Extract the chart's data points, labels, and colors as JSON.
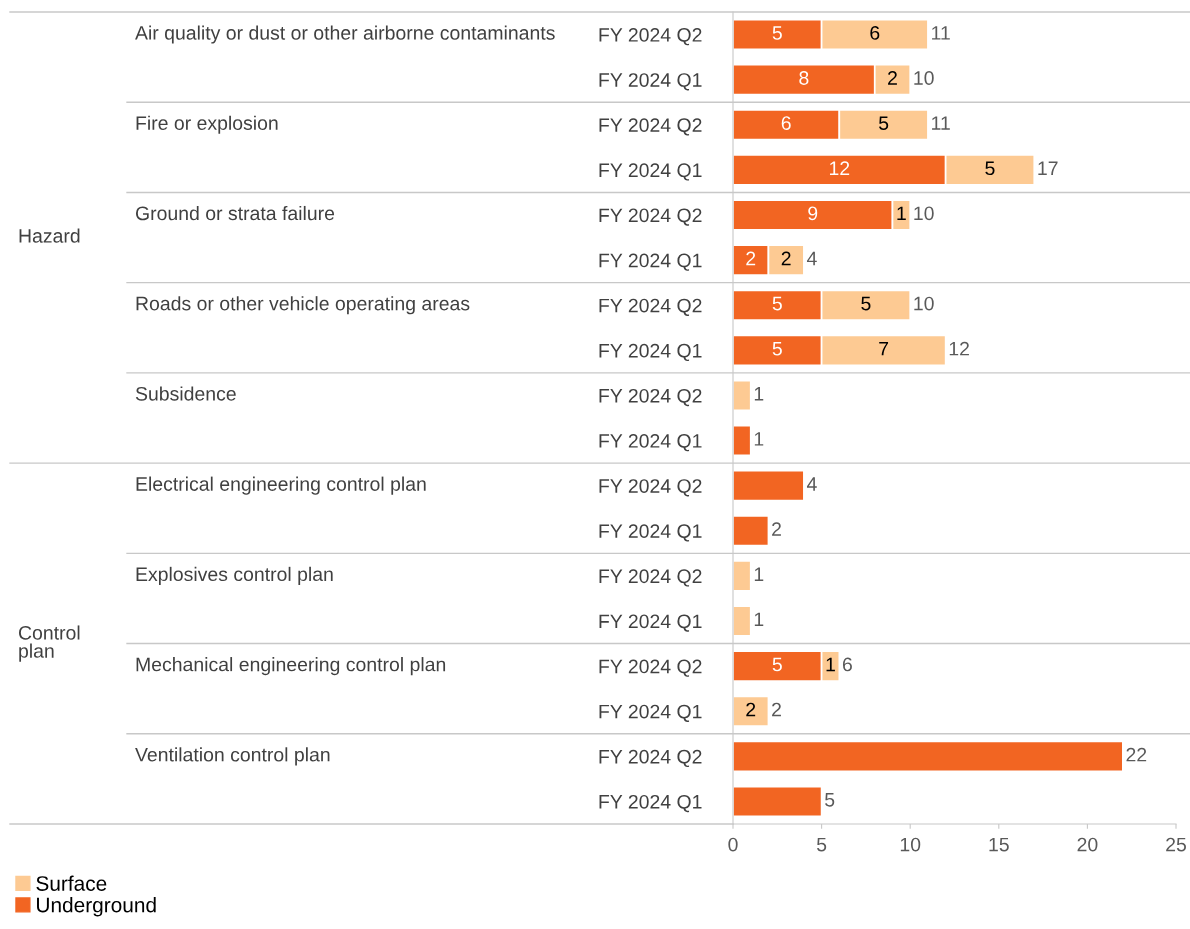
{
  "chart_data": {
    "type": "bar",
    "orientation": "horizontal",
    "stacked": true,
    "categories": [
      "FY 2024 Q2",
      "FY 2024 Q1",
      "FY 2024 Q2",
      "FY 2024 Q1",
      "FY 2024 Q2",
      "FY 2024 Q1",
      "FY 2024 Q2",
      "FY 2024 Q1",
      "FY 2024 Q2",
      "FY 2024 Q1",
      "FY 2024 Q2",
      "FY 2024 Q1",
      "FY 2024 Q2",
      "FY 2024 Q1",
      "FY 2024 Q2",
      "FY 2024 Q1",
      "FY 2024 Q2",
      "FY 2024 Q1"
    ],
    "series": [
      {
        "name": "Underground",
        "color": "#f26522",
        "values": [
          5,
          8,
          6,
          12,
          9,
          2,
          5,
          5,
          null,
          1,
          4,
          2,
          null,
          null,
          5,
          null,
          22,
          5
        ],
        "value_labels": [
          "5",
          "8",
          "6",
          "12",
          "9",
          "2",
          "5",
          "5",
          null,
          null,
          null,
          null,
          null,
          null,
          "5",
          null,
          null,
          null
        ]
      },
      {
        "name": "Surface",
        "color": "#fdca93",
        "values": [
          6,
          2,
          5,
          5,
          1,
          2,
          5,
          7,
          1,
          null,
          null,
          null,
          1,
          1,
          1,
          2,
          null,
          null
        ],
        "value_labels": [
          "6",
          "2",
          "5",
          "5",
          "1",
          "2",
          "5",
          "7",
          null,
          null,
          null,
          null,
          null,
          null,
          "1",
          "2",
          null,
          null
        ]
      }
    ],
    "totals": [
      "11",
      "10",
      "11",
      "17",
      "10",
      "4",
      "10",
      "12",
      "1",
      "1",
      "4",
      "2",
      "1",
      "1",
      "6",
      "2",
      "22",
      "5"
    ],
    "annotations": [
      "Hazard",
      "Control plan",
      "Air quality or dust or other airborne contaminants",
      "Fire or explosion",
      "Ground or strata failure",
      "Roads or other vehicle operating areas",
      "Subsidence",
      "Electrical engineering control plan",
      "Explosives control plan",
      "Mechanical engineering control plan",
      "Ventilation control plan"
    ],
    "xlim": [
      0,
      25
    ],
    "xticks": [
      0,
      5,
      10,
      15,
      20,
      25
    ],
    "grid": false,
    "legend": "bottom left"
  }
}
